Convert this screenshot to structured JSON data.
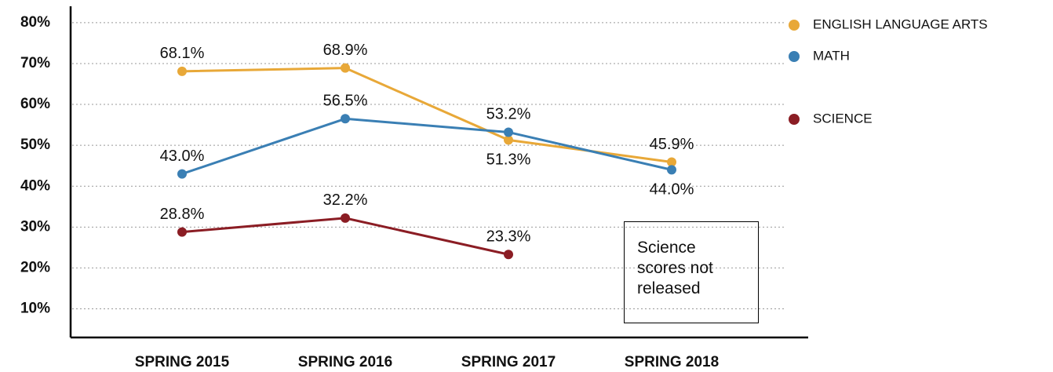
{
  "chart_data": {
    "type": "line",
    "categories": [
      "SPRING 2015",
      "SPRING 2016",
      "SPRING 2017",
      "SPRING 2018"
    ],
    "series": [
      {
        "name": "ENGLISH LANGUAGE ARTS",
        "color": "#e8a838",
        "values": [
          68.1,
          68.9,
          51.3,
          45.9
        ],
        "value_labels": [
          "68.1%",
          "68.9%",
          "51.3%",
          "45.9%"
        ]
      },
      {
        "name": "MATH",
        "color": "#3a7fb4",
        "values": [
          43.0,
          56.5,
          53.2,
          44.0
        ],
        "value_labels": [
          "43.0%",
          "56.5%",
          "53.2%",
          "44.0%"
        ]
      },
      {
        "name": "SCIENCE",
        "color": "#8b1d24",
        "values": [
          28.8,
          32.2,
          23.3,
          null
        ],
        "value_labels": [
          "28.8%",
          "32.2%",
          "23.3%",
          null
        ]
      }
    ],
    "ylim": [
      3,
      84
    ],
    "yticks": [
      {
        "value": 10,
        "label": "10%"
      },
      {
        "value": 20,
        "label": "20%"
      },
      {
        "value": 30,
        "label": "30%"
      },
      {
        "value": 40,
        "label": "40%"
      },
      {
        "value": 50,
        "label": "50%"
      },
      {
        "value": 60,
        "label": "60%"
      },
      {
        "value": 70,
        "label": "70%"
      },
      {
        "value": 80,
        "label": "80%"
      }
    ],
    "grid": true,
    "legend": "right",
    "annotation": "Science scores not released"
  }
}
